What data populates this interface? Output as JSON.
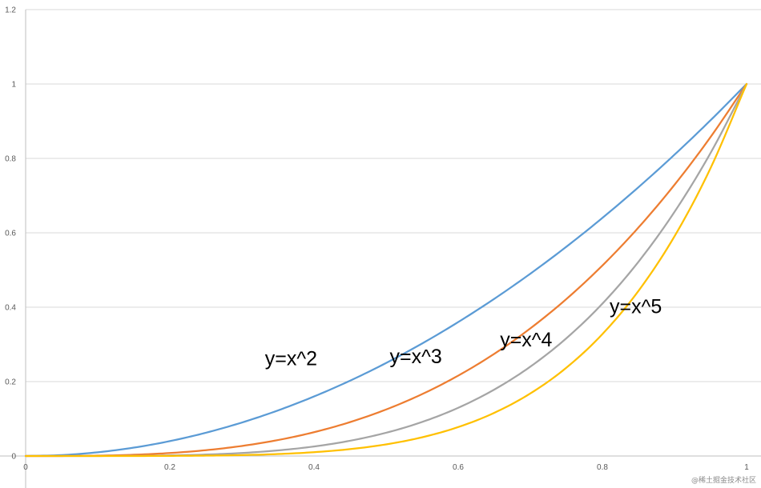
{
  "chart_data": {
    "type": "line",
    "title": "",
    "xlabel": "",
    "ylabel": "",
    "xlim": [
      0,
      1
    ],
    "ylim": [
      0,
      1.2
    ],
    "x_ticks": [
      "0",
      "0.2",
      "0.4",
      "0.6",
      "0.8",
      "1"
    ],
    "y_ticks": [
      "0",
      "0.2",
      "0.4",
      "0.6",
      "0.8",
      "1",
      "1.2"
    ],
    "grid": "horizontal",
    "legend": "none",
    "x": [
      0,
      0.05,
      0.1,
      0.15,
      0.2,
      0.25,
      0.3,
      0.35,
      0.4,
      0.45,
      0.5,
      0.55,
      0.6,
      0.65,
      0.7,
      0.75,
      0.8,
      0.85,
      0.9,
      0.95,
      1
    ],
    "series": [
      {
        "color": "#5B9BD5",
        "values": [
          0,
          0.0025,
          0.01,
          0.0225,
          0.04,
          0.0625,
          0.09,
          0.1225,
          0.16,
          0.2025,
          0.25,
          0.3025,
          0.36,
          0.4225,
          0.49,
          0.5625,
          0.64,
          0.7225,
          0.81,
          0.9025,
          1
        ]
      },
      {
        "color": "#ED7D31",
        "values": [
          0,
          0.000125,
          0.001,
          0.003375,
          0.008,
          0.015625,
          0.027,
          0.042875,
          0.064,
          0.091125,
          0.125,
          0.166375,
          0.216,
          0.274625,
          0.343,
          0.421875,
          0.512,
          0.614125,
          0.729,
          0.857375,
          1
        ]
      },
      {
        "color": "#A5A5A5",
        "values": [
          0,
          6.25e-06,
          0.0001,
          0.00050625,
          0.0016,
          0.00390625,
          0.0081,
          0.01500625,
          0.0256,
          0.04100625,
          0.0625,
          0.09150625,
          0.1296,
          0.17850625,
          0.2401,
          0.31640625,
          0.4096,
          0.52200625,
          0.6561,
          0.81450625,
          1
        ]
      },
      {
        "color": "#FFC000",
        "values": [
          0,
          3e-07,
          1e-05,
          7.59e-05,
          0.00032,
          0.00097656,
          0.00243,
          0.00525219,
          0.01024,
          0.01845281,
          0.03125,
          0.05032844,
          0.07776,
          0.11602906,
          0.16807,
          0.23730469,
          0.32768,
          0.44370531,
          0.59049,
          0.77378094,
          1
        ]
      }
    ],
    "annotations": [
      {
        "text": "y=x^2",
        "x": 0.332,
        "y": 0.24
      },
      {
        "text": "y=x^3",
        "x": 0.505,
        "y": 0.245
      },
      {
        "text": "y=x^4",
        "x": 0.658,
        "y": 0.29
      },
      {
        "text": "y=x^5",
        "x": 0.81,
        "y": 0.38
      }
    ]
  },
  "watermark": "@稀土掘金技术社区"
}
